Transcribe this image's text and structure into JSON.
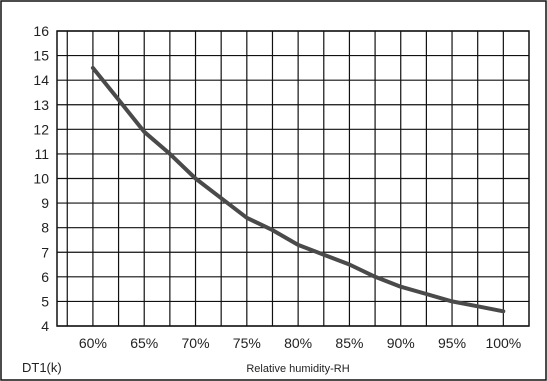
{
  "chart_data": {
    "type": "line",
    "title": "",
    "xlabel": "Relative humidity-RH",
    "ylabel": "DT1(k)",
    "x_tick_labels": [
      "60%",
      "65%",
      "70%",
      "75%",
      "80%",
      "85%",
      "90%",
      "95%",
      "100%"
    ],
    "x_range": [
      56.5,
      102.5
    ],
    "ylim": [
      4,
      16
    ],
    "y_ticks": [
      4,
      5,
      6,
      7,
      8,
      9,
      10,
      11,
      12,
      13,
      14,
      15,
      16
    ],
    "grid": true,
    "series": [
      {
        "x": [
          60,
          62.5,
          65,
          67.5,
          70,
          72.5,
          75,
          77.5,
          80,
          82.5,
          85,
          87.5,
          90,
          92.5,
          95,
          97.5,
          100
        ],
        "y": [
          14.5,
          13.2,
          11.9,
          11.0,
          10.0,
          9.2,
          8.4,
          7.9,
          7.3,
          6.9,
          6.5,
          6.0,
          5.6,
          5.3,
          5.0,
          4.8,
          4.6
        ]
      }
    ],
    "colors": {
      "line": "#4a4a4a",
      "grid": "#111111",
      "frame": "#111111"
    }
  }
}
